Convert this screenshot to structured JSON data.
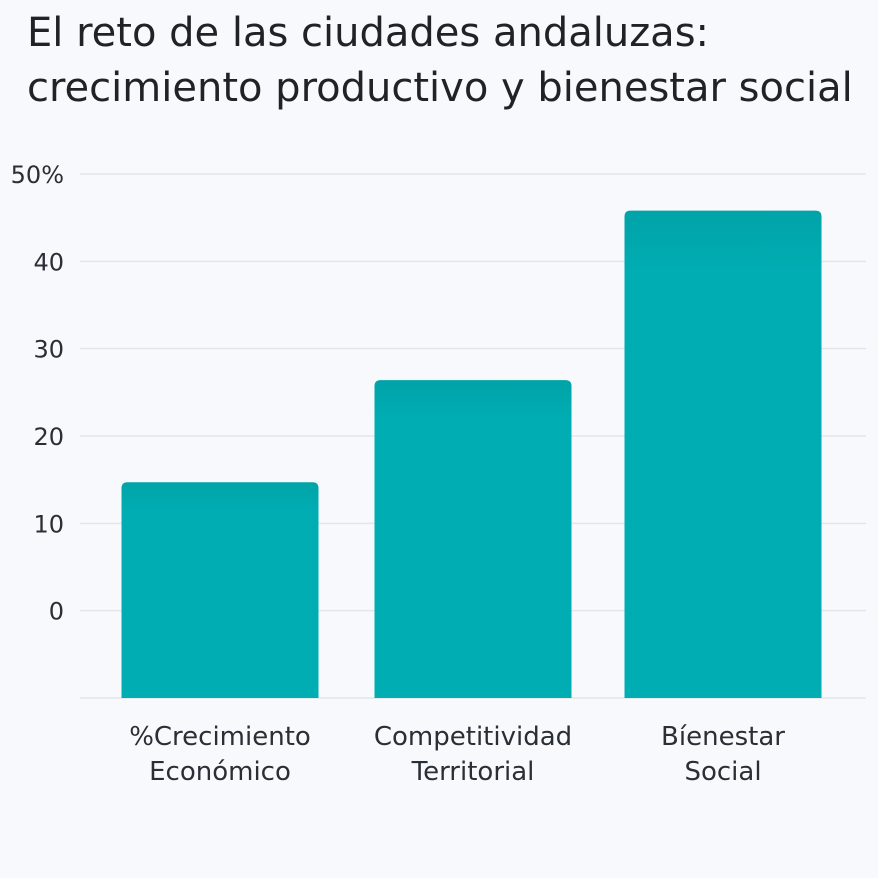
{
  "chart_data": {
    "type": "bar",
    "title": [
      "El reto de las ciudades andaluzas:",
      "crecimiento productivo y bienestar social"
    ],
    "categories": [
      [
        "%Crecimiento",
        "Económico"
      ],
      [
        "Competitividad",
        "Territorial"
      ],
      [
        "Bíenestar",
        "Social"
      ]
    ],
    "values": [
      14.7,
      26.4,
      45.8
    ],
    "yticks": [
      "0",
      "10",
      "20",
      "30",
      "40",
      "50%"
    ],
    "ylim": [
      -10,
      50
    ],
    "grid": true,
    "bar_color": "#00adb2",
    "bar_top_color": "#00a3a8",
    "grid_color": "#e3e6ea"
  }
}
